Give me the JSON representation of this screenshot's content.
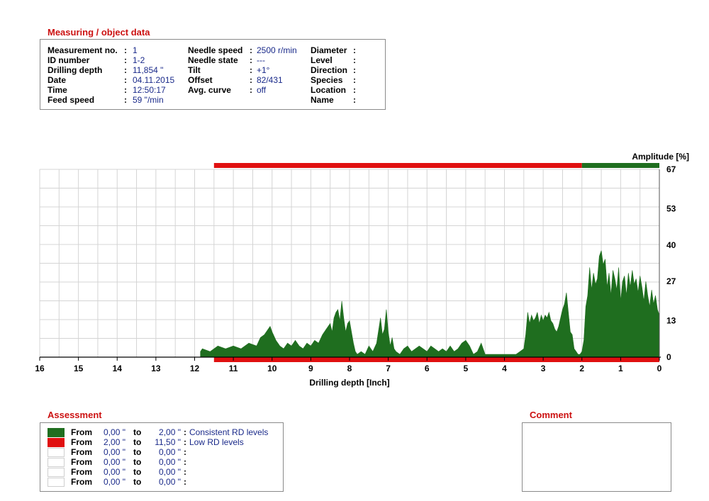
{
  "measuring": {
    "title": "Measuring / object data",
    "col1": [
      {
        "label": "Measurement no.",
        "value": "1"
      },
      {
        "label": "ID number",
        "value": "1-2"
      },
      {
        "label": "Drilling depth",
        "value": "11,854 \""
      },
      {
        "label": "Date",
        "value": "04.11.2015"
      },
      {
        "label": "Time",
        "value": "12:50:17"
      },
      {
        "label": "Feed speed",
        "value": "59 \"/min"
      }
    ],
    "col2": [
      {
        "label": "Needle speed",
        "value": "2500 r/min"
      },
      {
        "label": "Needle state",
        "value": "---"
      },
      {
        "label": "Tilt",
        "value": "+1°"
      },
      {
        "label": "Offset",
        "value": "82/431"
      },
      {
        "label": "Avg. curve",
        "value": "off"
      }
    ],
    "col3": [
      {
        "label": "Diameter",
        "value": ""
      },
      {
        "label": "Level",
        "value": ""
      },
      {
        "label": "Direction",
        "value": ""
      },
      {
        "label": "Species",
        "value": ""
      },
      {
        "label": "Location",
        "value": ""
      },
      {
        "label": "Name",
        "value": ""
      }
    ]
  },
  "chart_data": {
    "type": "area",
    "xlabel": "Drilling depth [Inch]",
    "ylabel": "Amplitude [%]",
    "xlim": [
      16,
      0
    ],
    "ylim": [
      0,
      67
    ],
    "x_ticks": [
      16,
      15,
      14,
      13,
      12,
      11,
      10,
      9,
      8,
      7,
      6,
      5,
      4,
      3,
      2,
      1,
      0
    ],
    "y_ticks": [
      0,
      13,
      27,
      40,
      53,
      67
    ],
    "grid": true,
    "fill_color": "#1f6e1f",
    "x": [
      11.85,
      11.8,
      11.6,
      11.4,
      11.2,
      11.0,
      10.8,
      10.6,
      10.4,
      10.3,
      10.2,
      10.1,
      10.05,
      10.0,
      9.9,
      9.8,
      9.7,
      9.6,
      9.5,
      9.4,
      9.3,
      9.2,
      9.1,
      9.0,
      8.9,
      8.8,
      8.7,
      8.6,
      8.5,
      8.45,
      8.4,
      8.35,
      8.3,
      8.25,
      8.2,
      8.15,
      8.1,
      8.05,
      8.0,
      7.95,
      7.9,
      7.85,
      7.8,
      7.7,
      7.6,
      7.5,
      7.4,
      7.3,
      7.2,
      7.15,
      7.1,
      7.05,
      7.0,
      6.95,
      6.9,
      6.85,
      6.8,
      6.7,
      6.6,
      6.5,
      6.4,
      6.3,
      6.2,
      6.1,
      6.0,
      5.9,
      5.8,
      5.7,
      5.6,
      5.5,
      5.4,
      5.3,
      5.2,
      5.1,
      5.0,
      4.9,
      4.8,
      4.7,
      4.6,
      4.5,
      4.4,
      4.3,
      4.2,
      4.1,
      4.0,
      3.9,
      3.8,
      3.7,
      3.6,
      3.5,
      3.45,
      3.4,
      3.35,
      3.3,
      3.25,
      3.2,
      3.15,
      3.1,
      3.05,
      3.0,
      2.95,
      2.9,
      2.85,
      2.8,
      2.75,
      2.7,
      2.65,
      2.6,
      2.55,
      2.5,
      2.45,
      2.4,
      2.35,
      2.3,
      2.25,
      2.2,
      2.15,
      2.1,
      2.05,
      2.0,
      1.95,
      1.9,
      1.85,
      1.8,
      1.75,
      1.7,
      1.65,
      1.6,
      1.55,
      1.5,
      1.45,
      1.4,
      1.35,
      1.3,
      1.25,
      1.2,
      1.15,
      1.1,
      1.05,
      1.0,
      0.95,
      0.9,
      0.85,
      0.8,
      0.75,
      0.7,
      0.65,
      0.6,
      0.55,
      0.5,
      0.45,
      0.4,
      0.35,
      0.3,
      0.25,
      0.2,
      0.15,
      0.1,
      0.05,
      0.0
    ],
    "values": [
      2,
      3,
      2,
      4,
      3,
      4,
      3,
      5,
      4,
      7,
      8,
      10,
      11,
      9,
      6,
      4,
      3,
      5,
      4,
      6,
      4,
      3,
      5,
      4,
      6,
      5,
      8,
      10,
      12,
      9,
      14,
      16,
      17,
      13,
      20,
      14,
      9,
      12,
      13,
      9,
      5,
      2,
      1,
      2,
      1,
      4,
      2,
      5,
      14,
      8,
      10,
      17,
      9,
      4,
      7,
      3,
      2,
      1,
      3,
      4,
      2,
      3,
      4,
      3,
      2,
      4,
      3,
      2,
      3,
      2,
      4,
      2,
      3,
      5,
      6,
      4,
      1,
      2,
      5,
      1,
      1,
      1,
      1,
      1,
      1,
      1,
      1,
      1,
      2,
      3,
      8,
      16,
      12,
      15,
      13,
      14,
      16,
      12,
      15,
      13,
      15,
      14,
      16,
      13,
      12,
      10,
      9,
      11,
      14,
      17,
      19,
      23,
      16,
      9,
      8,
      3,
      2,
      1,
      1,
      2,
      6,
      18,
      22,
      32,
      24,
      30,
      26,
      28,
      36,
      38,
      33,
      35,
      25,
      30,
      22,
      31,
      28,
      24,
      32,
      20,
      27,
      29,
      22,
      30,
      25,
      31,
      26,
      28,
      23,
      29,
      25,
      20,
      27,
      22,
      18,
      24,
      19,
      22,
      17,
      15
    ]
  },
  "condition_bars": {
    "red_color": "#e01010",
    "green_color": "#1f6e1f",
    "red_from": 11.5,
    "red_to": 2.0,
    "green_from": 2.0,
    "green_to": 0.0
  },
  "assessment": {
    "title": "Assessment",
    "rows": [
      {
        "color": "#1f6e1f",
        "from_label": "From",
        "from": "0,00 \"",
        "to_label": "to",
        "to": "2,00 \"",
        "colon": ":",
        "desc": "Consistent RD levels"
      },
      {
        "color": "#e01010",
        "from_label": "From",
        "from": "2,00 \"",
        "to_label": "to",
        "to": "11,50 \"",
        "colon": ":",
        "desc": "Low RD levels"
      },
      {
        "color": "#ffffff",
        "from_label": "From",
        "from": "0,00 \"",
        "to_label": "to",
        "to": "0,00 \"",
        "colon": ":",
        "desc": ""
      },
      {
        "color": "#ffffff",
        "from_label": "From",
        "from": "0,00 \"",
        "to_label": "to",
        "to": "0,00 \"",
        "colon": ":",
        "desc": ""
      },
      {
        "color": "#ffffff",
        "from_label": "From",
        "from": "0,00 \"",
        "to_label": "to",
        "to": "0,00 \"",
        "colon": ":",
        "desc": ""
      },
      {
        "color": "#ffffff",
        "from_label": "From",
        "from": "0,00 \"",
        "to_label": "to",
        "to": "0,00 \"",
        "colon": ":",
        "desc": ""
      }
    ]
  },
  "comment": {
    "title": "Comment",
    "text": ""
  }
}
